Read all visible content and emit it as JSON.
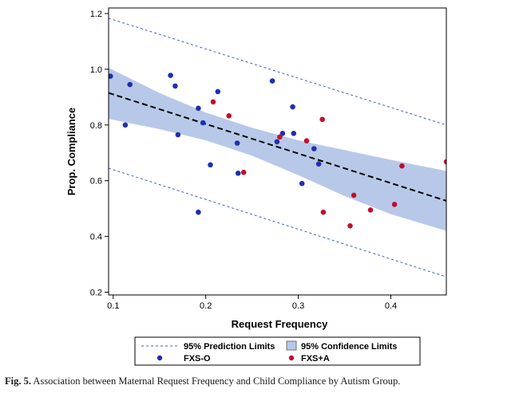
{
  "chart_data": {
    "type": "scatter",
    "title": "",
    "xlabel": "Request Frequency",
    "ylabel": "Prop. Compliance",
    "xlim": [
      0.095,
      0.46
    ],
    "ylim": [
      0.19,
      1.22
    ],
    "x_ticks": [
      0.1,
      0.2,
      0.3,
      0.4
    ],
    "x_tick_labels": [
      "0.1",
      "0.2",
      "0.3",
      "0.4"
    ],
    "y_ticks": [
      0.2,
      0.4,
      0.6,
      0.8,
      1.0,
      1.2
    ],
    "y_tick_labels": [
      "0.2",
      "0.4",
      "0.6",
      "0.8",
      "1.0",
      "1.2"
    ],
    "grid": false,
    "legend_position": "bottom",
    "series": [
      {
        "name": "FXS-O",
        "color": "#1f2fb0",
        "marker": "circle",
        "points": [
          [
            0.097,
            0.975
          ],
          [
            0.113,
            0.8
          ],
          [
            0.118,
            0.945
          ],
          [
            0.162,
            0.978
          ],
          [
            0.167,
            0.94
          ],
          [
            0.17,
            0.765
          ],
          [
            0.192,
            0.86
          ],
          [
            0.192,
            0.487
          ],
          [
            0.197,
            0.808
          ],
          [
            0.205,
            0.657
          ],
          [
            0.213,
            0.92
          ],
          [
            0.234,
            0.735
          ],
          [
            0.235,
            0.627
          ],
          [
            0.272,
            0.958
          ],
          [
            0.277,
            0.74
          ],
          [
            0.283,
            0.77
          ],
          [
            0.294,
            0.865
          ],
          [
            0.295,
            0.77
          ],
          [
            0.304,
            0.59
          ],
          [
            0.317,
            0.715
          ],
          [
            0.322,
            0.66
          ]
        ]
      },
      {
        "name": "FXS+A",
        "color": "#c0102e",
        "marker": "circle",
        "points": [
          [
            0.208,
            0.883
          ],
          [
            0.225,
            0.833
          ],
          [
            0.241,
            0.63
          ],
          [
            0.28,
            0.757
          ],
          [
            0.309,
            0.743
          ],
          [
            0.326,
            0.82
          ],
          [
            0.327,
            0.487
          ],
          [
            0.356,
            0.438
          ],
          [
            0.36,
            0.548
          ],
          [
            0.378,
            0.495
          ],
          [
            0.404,
            0.515
          ],
          [
            0.412,
            0.653
          ],
          [
            0.46,
            0.668
          ]
        ]
      }
    ],
    "regression": {
      "style": "dashed",
      "color": "#000000",
      "x": [
        0.095,
        0.46
      ],
      "y": [
        0.915,
        0.528
      ]
    },
    "confidence_band": {
      "name": "95% Confidence Limits",
      "color": "#b8c8e8",
      "x": [
        0.095,
        0.15,
        0.2,
        0.25,
        0.3,
        0.35,
        0.4,
        0.46
      ],
      "upper": [
        1.005,
        0.915,
        0.845,
        0.79,
        0.745,
        0.71,
        0.675,
        0.635
      ],
      "lower": [
        0.822,
        0.785,
        0.745,
        0.69,
        0.62,
        0.545,
        0.48,
        0.42
      ]
    },
    "prediction_limits": {
      "name": "95% Prediction Limits",
      "color": "#3a5fcd",
      "style": "dashed",
      "x": [
        0.095,
        0.46
      ],
      "upper": [
        1.183,
        0.8
      ],
      "lower": [
        0.645,
        0.255
      ]
    },
    "legend": [
      {
        "label": "95% Prediction Limits",
        "kind": "dashed-line"
      },
      {
        "label": "95% Confidence Limits",
        "kind": "band"
      },
      {
        "label": "FXS-O",
        "kind": "marker"
      },
      {
        "label": "FXS+A",
        "kind": "marker"
      }
    ]
  },
  "caption": {
    "label": "Fig. 5.",
    "text": "Association between Maternal Request Frequency and Child Compliance by Autism Group."
  }
}
